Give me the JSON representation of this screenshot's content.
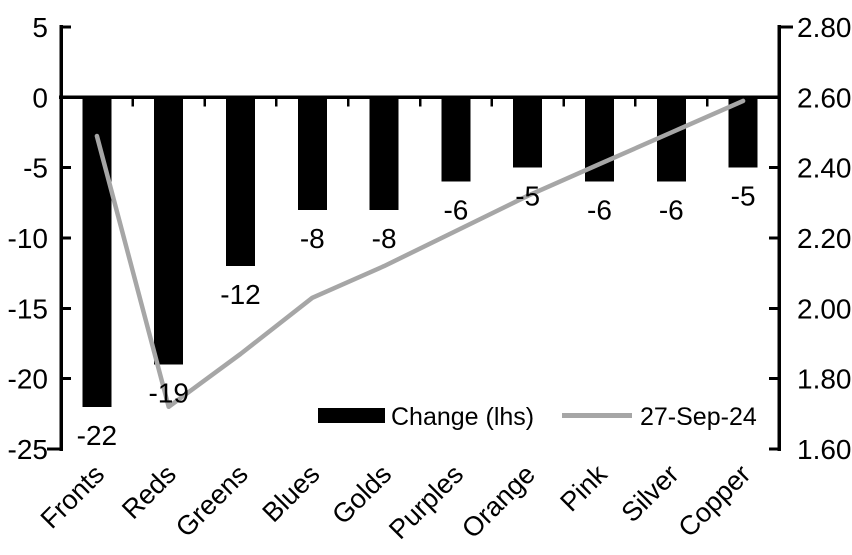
{
  "chart_data": {
    "type": "bar",
    "subtype": "dual-axis-bar-and-line",
    "title": "",
    "categories": [
      "Fronts",
      "Reds",
      "Greens",
      "Blues",
      "Golds",
      "Purples",
      "Orange",
      "Pink",
      "Silver",
      "Copper"
    ],
    "series": [
      {
        "name": "Change (lhs)",
        "type": "bar",
        "axis": "left",
        "color": "#000000",
        "values": [
          -22,
          -19,
          -12,
          -8,
          -8,
          -6,
          -5,
          -6,
          -6,
          -5
        ],
        "data_labels": [
          "-22",
          "-19",
          "-12",
          "-8",
          "-8",
          "-6",
          "-5",
          "-6",
          "-6",
          "-5"
        ]
      },
      {
        "name": "27-Sep-24",
        "type": "line",
        "axis": "right",
        "color": "#a6a6a6",
        "values": [
          2.49,
          1.72,
          1.87,
          2.03,
          2.12,
          2.22,
          2.32,
          2.41,
          2.5,
          2.59
        ]
      }
    ],
    "left_axis": {
      "min": -25,
      "max": 5,
      "step": 5,
      "tick_labels": [
        "5",
        "0",
        "-5",
        "-10",
        "-15",
        "-20",
        "-25"
      ]
    },
    "right_axis": {
      "min": 1.6,
      "max": 2.8,
      "step": 0.2,
      "tick_labels": [
        "2.80",
        "2.60",
        "2.40",
        "2.20",
        "2.00",
        "1.80",
        "1.60"
      ]
    },
    "grid": false,
    "legend_position": "inside-bottom",
    "legend": [
      {
        "label": "Change (lhs)",
        "swatch": "bar",
        "color": "#000000"
      },
      {
        "label": "27-Sep-24",
        "swatch": "line",
        "color": "#a6a6a6"
      }
    ],
    "colors": {
      "background": "#ffffff",
      "axis": "#000000",
      "text": "#000000",
      "bar": "#000000",
      "line": "#a6a6a6"
    }
  }
}
